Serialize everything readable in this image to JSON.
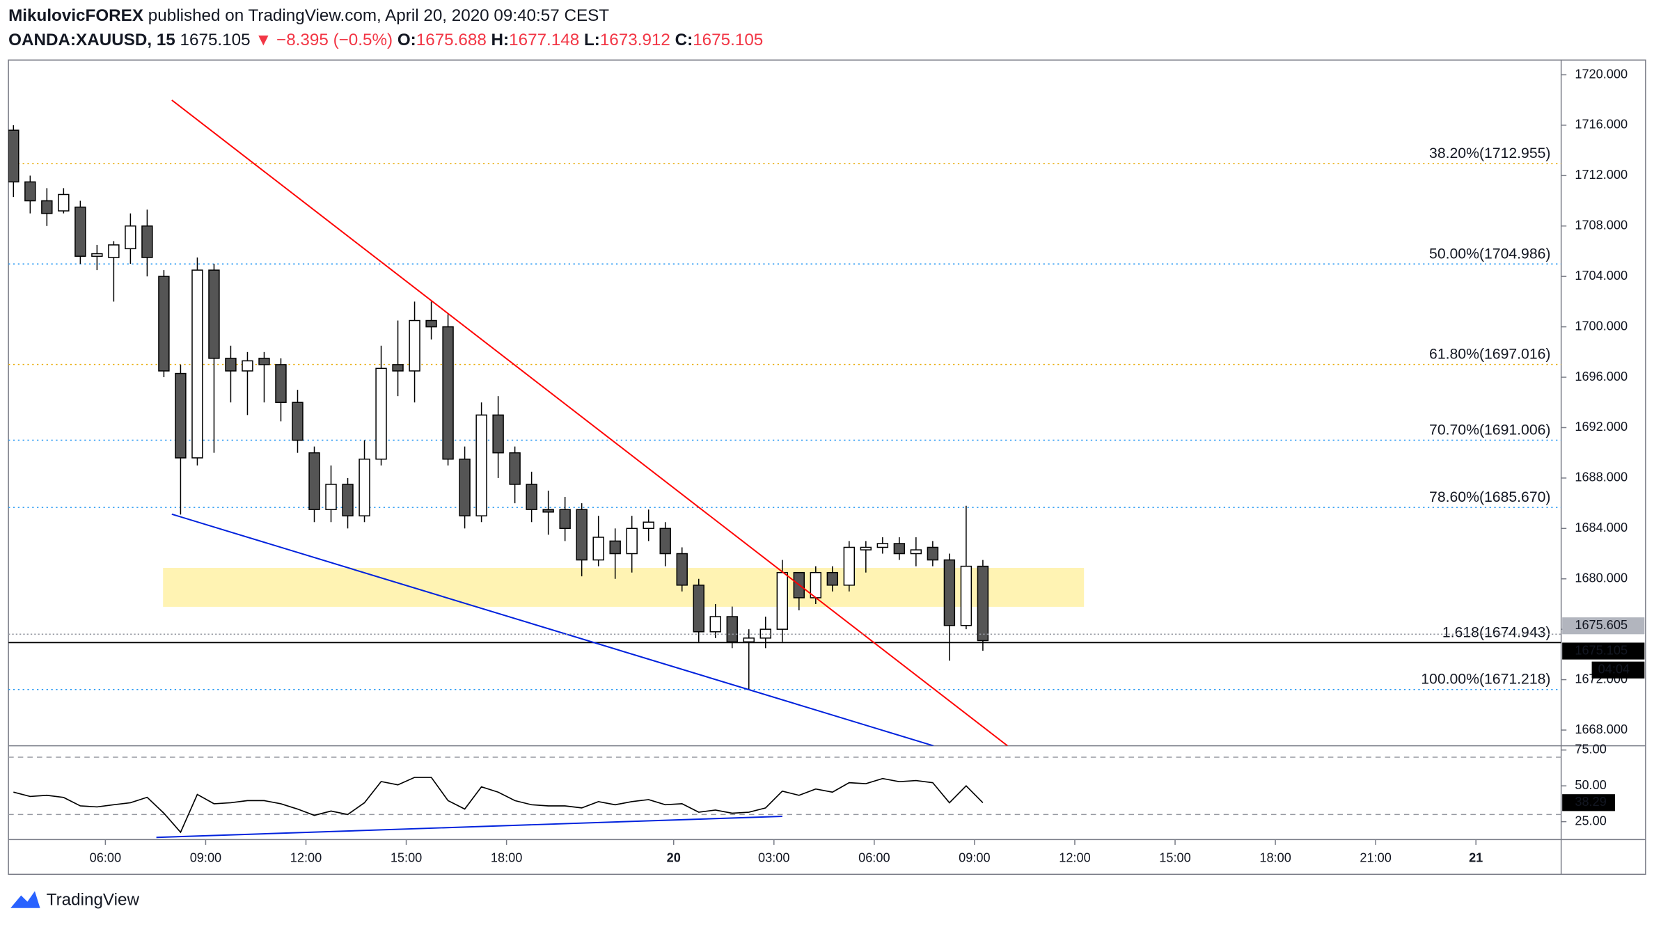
{
  "header": {
    "author": "MikulovicFOREX",
    "published": "published on TradingView.com, April 20, 2020 09:40:57 CEST",
    "symbol": "OANDA:XAUUSD, 15",
    "last": "1675.105",
    "change": "▼ −8.395 (−0.5%)",
    "o_label": "O:",
    "o": "1675.688",
    "h_label": "H:",
    "h": "1677.148",
    "l_label": "L:",
    "l": "1673.912",
    "c_label": "C:",
    "c": "1675.105"
  },
  "footer": {
    "brand": "TradingView"
  },
  "chart_data": [
    {
      "type": "candlestick",
      "x": [
        -11,
        -9,
        -7,
        -5,
        -3,
        -1,
        1,
        3,
        5,
        7,
        9,
        11,
        13,
        15,
        17,
        19,
        21,
        23,
        25,
        27,
        29,
        31,
        33,
        35,
        37,
        39,
        41,
        43,
        45,
        47,
        49,
        51,
        53,
        55,
        57,
        59,
        61,
        63,
        65,
        67,
        69,
        71,
        73,
        75,
        77,
        79,
        81,
        83,
        85,
        87,
        89,
        91,
        93,
        95,
        97,
        99,
        101,
        103,
        105
      ],
      "open": [
        1715.6,
        1711.5,
        1710,
        1709.2,
        1709.5,
        1705.6,
        1705.5,
        1706.2,
        1708,
        1704,
        1696.3,
        1689.6,
        1704.5,
        1697.5,
        1696.5,
        1697.5,
        1697,
        1694,
        1690,
        1685.5,
        1687.5,
        1685,
        1689.5,
        1697,
        1696.5,
        1700.5,
        1700,
        1689.5,
        1685,
        1693,
        1690,
        1687.5,
        1685.5,
        1685.5,
        1685.5,
        1681.5,
        1683,
        1682,
        1684,
        1684,
        1682,
        1679.5,
        1675.8,
        1677,
        1675,
        1675.3,
        1676,
        1680.5,
        1678.5,
        1680.5,
        1679.5,
        1682.3,
        1682.5,
        1682.8,
        1682,
        1682.5,
        1681.5,
        1676.3,
        1681
      ],
      "high": [
        1716,
        1712,
        1711,
        1711,
        1710,
        1706.5,
        1706.8,
        1709,
        1709.3,
        1704.5,
        1697,
        1705.5,
        1705,
        1698.5,
        1698,
        1698,
        1697.5,
        1695,
        1690.5,
        1689,
        1688,
        1691,
        1698.5,
        1700.5,
        1702,
        1702,
        1701,
        1690.5,
        1694,
        1694.5,
        1690.5,
        1688.5,
        1687,
        1686.5,
        1686,
        1685,
        1684,
        1685,
        1685.5,
        1684.5,
        1682.5,
        1680,
        1678,
        1677.8,
        1676,
        1677,
        1681.5,
        1680.5,
        1681,
        1681,
        1683,
        1683,
        1683.3,
        1683.3,
        1683.3,
        1683,
        1682,
        1685.8,
        1681.5
      ],
      "low": [
        1710.3,
        1709,
        1708,
        1709,
        1705,
        1704.5,
        1702,
        1705,
        1704,
        1696,
        1685.1,
        1689,
        1690,
        1694,
        1693,
        1694,
        1692.5,
        1690,
        1684.5,
        1684.5,
        1684,
        1684.5,
        1689,
        1694.5,
        1694,
        1699,
        1689,
        1684,
        1684.5,
        1688,
        1686,
        1684.5,
        1683.5,
        1683,
        1680.2,
        1681,
        1680,
        1680.5,
        1683,
        1681,
        1679,
        1675,
        1675.3,
        1674.5,
        1671.2,
        1674.5,
        1675,
        1677.5,
        1678,
        1679,
        1679,
        1680.5,
        1682,
        1681.5,
        1681,
        1681,
        1673.5,
        1676,
        1674.3
      ],
      "close": [
        1711.5,
        1710,
        1709,
        1710.5,
        1705.6,
        1705.8,
        1706.5,
        1708,
        1705.5,
        1696.5,
        1689.6,
        1704.5,
        1697.5,
        1696.5,
        1697.3,
        1697,
        1694,
        1691,
        1685.5,
        1687.5,
        1685,
        1689.5,
        1696.7,
        1696.5,
        1700.5,
        1700,
        1689.5,
        1685,
        1693,
        1690,
        1687.5,
        1685.5,
        1685.3,
        1684,
        1681.5,
        1683.3,
        1682,
        1684,
        1684.5,
        1682,
        1679.5,
        1675.8,
        1677,
        1675,
        1675.3,
        1676,
        1680.5,
        1678.5,
        1680.5,
        1679.5,
        1682.5,
        1682.5,
        1682.8,
        1682,
        1682.3,
        1681.5,
        1676.3,
        1681,
        1675.1
      ],
      "up_color": "#ffffff",
      "down_color": "#555555",
      "xlim": [
        -11.6,
        174.2
      ],
      "ylim": [
        1666.75,
        1721.17
      ],
      "yticks": [
        {
          "value": 1668,
          "label": "1668.000"
        },
        {
          "value": 1672,
          "label": "1672.000"
        },
        {
          "value": 1676,
          "label": "1676.000"
        },
        {
          "value": 1680,
          "label": "1680.000"
        },
        {
          "value": 1684,
          "label": "1684.000"
        },
        {
          "value": 1688,
          "label": "1688.000"
        },
        {
          "value": 1692,
          "label": "1692.000"
        },
        {
          "value": 1696,
          "label": "1696.000"
        },
        {
          "value": 1700,
          "label": "1700.000"
        },
        {
          "value": 1704,
          "label": "1704.000"
        },
        {
          "value": 1708,
          "label": "1708.000"
        },
        {
          "value": 1712,
          "label": "1712.000"
        },
        {
          "value": 1716,
          "label": "1716.000"
        },
        {
          "value": 1720,
          "label": "1720.000"
        }
      ],
      "levels": [
        {
          "value": 1712.955,
          "label": "38.20%(1712.955)",
          "color": "#e8a900",
          "style": "dotted"
        },
        {
          "value": 1704.986,
          "label": "50.00%(1704.986)",
          "color": "#2196f3",
          "style": "dotted"
        },
        {
          "value": 1697.016,
          "label": "61.80%(1697.016)",
          "color": "#e8a900",
          "style": "dotted"
        },
        {
          "value": 1691.006,
          "label": "70.70%(1691.006)",
          "color": "#2196f3",
          "style": "dotted"
        },
        {
          "value": 1685.67,
          "label": "78.60%(1685.670)",
          "color": "#2196f3",
          "style": "dotted"
        },
        {
          "value": 1674.943,
          "label": "1.618(1674.943)",
          "color": "#000000",
          "style": "solid"
        },
        {
          "value": 1671.218,
          "label": "100.00%(1671.218)",
          "color": "#2196f3",
          "style": "dotted"
        }
      ],
      "trendlines": [
        {
          "color": "#ff0000",
          "x": [
            7.95,
            107.95
          ],
          "y": [
            1717.99,
            1666.75
          ]
        },
        {
          "color": "#0022dd",
          "x": [
            7.95,
            99.1
          ],
          "y": [
            1685.13,
            1666.75
          ]
        }
      ],
      "zone": {
        "x": [
          6.9,
          117.1
        ],
        "y": [
          1677.78,
          1680.87
        ],
        "color": "#fff3b3"
      },
      "price_labels": [
        {
          "value": 1675.605,
          "label": "1675.605",
          "color": "#b2b5be"
        },
        {
          "value": 1675.105,
          "label": "1675.105",
          "color": "#000000"
        }
      ],
      "countdown": "04:04"
    },
    {
      "type": "line",
      "x": [
        -11,
        -9,
        -7,
        -5,
        -3,
        -1,
        1,
        3,
        5,
        7,
        9,
        11,
        13,
        15,
        17,
        19,
        21,
        23,
        25,
        27,
        29,
        31,
        33,
        35,
        37,
        39,
        41,
        43,
        45,
        47,
        49,
        51,
        53,
        55,
        57,
        59,
        61,
        63,
        65,
        67,
        69,
        71,
        73,
        75,
        77,
        79,
        81,
        83,
        85,
        87,
        89,
        91,
        93,
        95,
        97,
        99,
        101,
        103,
        105
      ],
      "values": [
        45.6,
        42.6,
        43.4,
        41.9,
        36,
        35.3,
        36.8,
        38.2,
        42,
        30.9,
        17.6,
        44,
        37.5,
        38.2,
        39.7,
        39.7,
        37.5,
        33.8,
        29.4,
        32.4,
        30,
        38.2,
        53,
        50.7,
        55.9,
        55.9,
        39.7,
        33.8,
        49.3,
        45.6,
        39.7,
        36.8,
        36,
        36,
        34.6,
        39,
        36.8,
        39,
        40.4,
        36.8,
        37.5,
        31.6,
        33.1,
        30.9,
        31.6,
        34.6,
        46.3,
        43.4,
        47.8,
        45.6,
        52.2,
        51.5,
        55.1,
        52.9,
        53.7,
        52.2,
        38.2,
        50,
        38.2
      ],
      "color": "#000000",
      "xlim": [
        -11.6,
        174.2
      ],
      "ylim": [
        12.5,
        77.94
      ],
      "yticks": [
        {
          "value": 25,
          "label": "25.00"
        },
        {
          "value": 50,
          "label": "50.00"
        },
        {
          "value": 75,
          "label": "75.00"
        }
      ],
      "bands": [
        70,
        30
      ],
      "last_label": {
        "value": 38.29,
        "label": "38.29"
      },
      "trendline": {
        "color": "#0022dd",
        "x": [
          6.1,
          81
        ],
        "y": [
          14,
          28.7
        ]
      },
      "xticks": [
        {
          "value": 0,
          "label": "06:00"
        },
        {
          "value": 12,
          "label": "09:00"
        },
        {
          "value": 24,
          "label": "12:00"
        },
        {
          "value": 36,
          "label": "15:00"
        },
        {
          "value": 48,
          "label": "18:00"
        },
        {
          "value": 68,
          "label": "20"
        },
        {
          "value": 80,
          "label": "03:00"
        },
        {
          "value": 92,
          "label": "06:00"
        },
        {
          "value": 104,
          "label": "09:00"
        },
        {
          "value": 116,
          "label": "12:00"
        },
        {
          "value": 128,
          "label": "15:00"
        },
        {
          "value": 140,
          "label": "18:00"
        },
        {
          "value": 152,
          "label": "21:00"
        },
        {
          "value": 164,
          "label": "21"
        }
      ]
    }
  ]
}
